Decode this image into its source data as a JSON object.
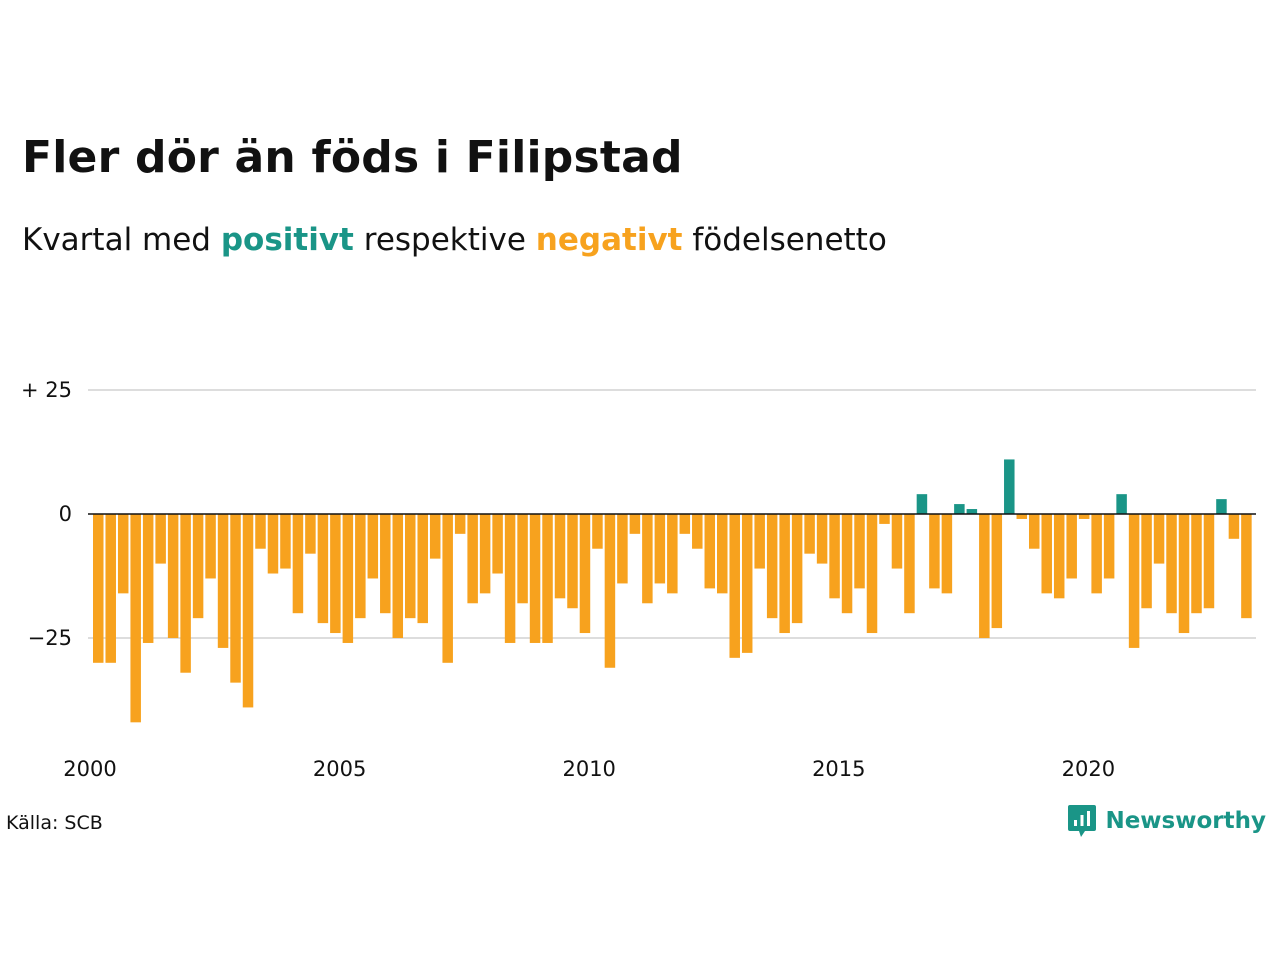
{
  "title": "Fler dör än föds i Filipstad",
  "subtitle": {
    "prefix": "Kvartal med",
    "positive_word": "positivt",
    "middle": "respektive",
    "negative_word": "negativt",
    "suffix": "födelsenetto"
  },
  "colors": {
    "positive": "#1a9587",
    "negative": "#f7a21e",
    "gridline": "#dddddd",
    "zero_line": "#111111",
    "text": "#111111"
  },
  "source": "Källa: SCB",
  "brand": {
    "name": "Newsworthy",
    "icon": "newsworthy-logo-icon"
  },
  "chart_data": {
    "type": "bar",
    "start": "2000 Q1",
    "frequency": "quarterly",
    "ylim": [
      -46,
      34
    ],
    "y_ticks": [
      {
        "value": 25,
        "label": "+ 25"
      },
      {
        "value": 0,
        "label": "0"
      },
      {
        "value": -25,
        "label": "−25"
      }
    ],
    "x_ticks": [
      "2000",
      "2005",
      "2010",
      "2015",
      "2020"
    ],
    "grid": true,
    "legend": "none",
    "series": [
      {
        "values": [
          -30,
          -30,
          -16,
          -42,
          -26,
          -10,
          -25,
          -32,
          -21,
          -13,
          -27,
          -34,
          -39,
          -7,
          -12,
          -11,
          -20,
          -8,
          -22,
          -24,
          -26,
          -21,
          -13,
          -20,
          -25,
          -21,
          -22,
          -9,
          -30,
          -4,
          -18,
          -16,
          -12,
          -26,
          -18,
          -26,
          -26,
          -17,
          -19,
          -24,
          -7,
          -31,
          -14,
          -4,
          -18,
          -14,
          -16,
          -4,
          -7,
          -15,
          -16,
          -29,
          -28,
          -11,
          -21,
          -24,
          -22,
          -8,
          -10,
          -17,
          -20,
          -15,
          -24,
          -2,
          -11,
          -20,
          4,
          -15,
          -16,
          2,
          1,
          -25,
          -23,
          11,
          -1,
          -7,
          -16,
          -17,
          -13,
          -1,
          -16,
          -13,
          4,
          -27,
          -19,
          -10,
          -20,
          -24,
          -20,
          -19,
          3,
          -5,
          -21
        ]
      }
    ]
  }
}
